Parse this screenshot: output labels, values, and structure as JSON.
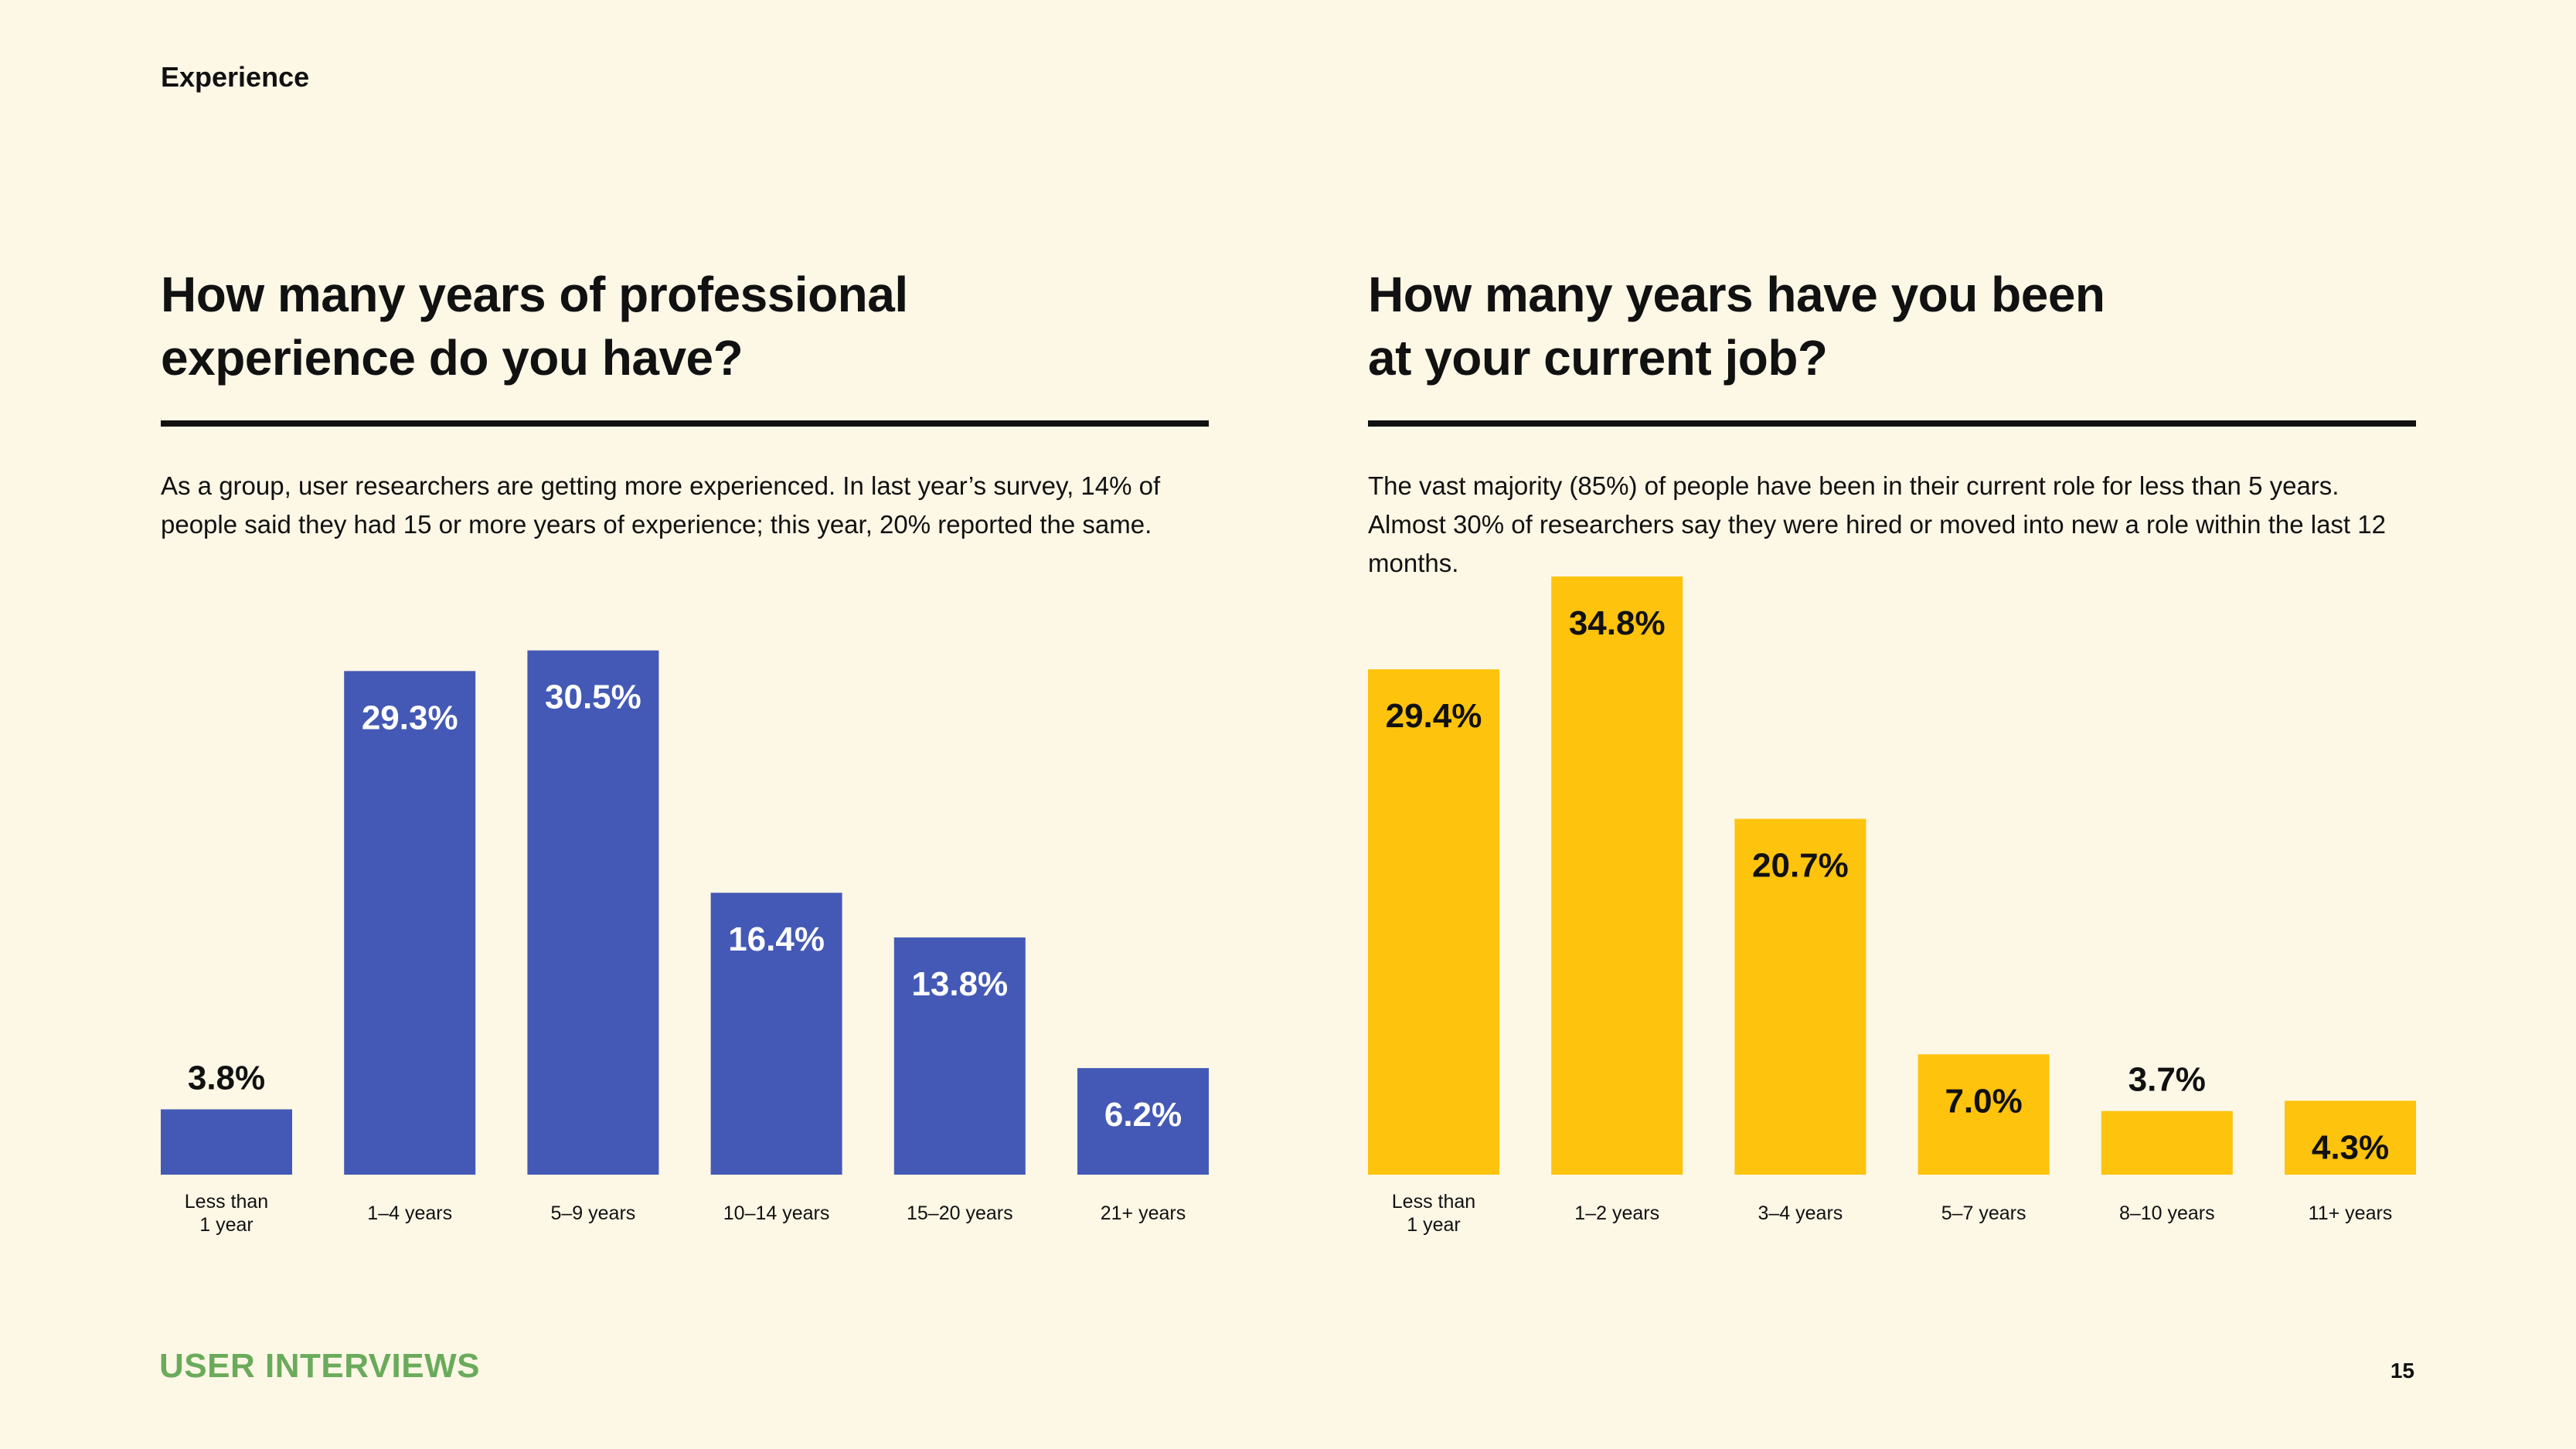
{
  "header": {
    "section": "Experience"
  },
  "footer": {
    "brand": "USER INTERVIEWS",
    "page_number": "15"
  },
  "panels": [
    {
      "title_line1": "How many years of professional",
      "title_line2": "experience do you have?",
      "description": "As a group, user researchers are getting more experienced. In last year’s survey, 14% of people said they had 15 or more years of experience; this year, 20% reported the same."
    },
    {
      "title_line1": "How many years have you been",
      "title_line2": "at your current job?",
      "description": "The vast majority (85%) of people have been in their current role for less than 5 years. Almost 30% of researchers say they were hired or moved into new a role within the last 12 months."
    }
  ],
  "chart_data": [
    {
      "type": "bar",
      "title": "How many years of professional experience do you have?",
      "categories": [
        "Less than 1 year",
        "1–4 years",
        "5–9 years",
        "10–14 years",
        "15–20 years",
        "21+ years"
      ],
      "category_lines": [
        [
          "Less than",
          "1 year"
        ],
        [
          "1–4 years"
        ],
        [
          "5–9 years"
        ],
        [
          "10–14 years"
        ],
        [
          "15–20 years"
        ],
        [
          "21+ years"
        ]
      ],
      "values": [
        3.8,
        29.3,
        30.5,
        16.4,
        13.8,
        6.2
      ],
      "value_labels": [
        "3.8%",
        "29.3%",
        "30.5%",
        "16.4%",
        "13.8%",
        "6.2%"
      ],
      "ylim": [
        0,
        34.8
      ],
      "bar_color": "#4459b5",
      "inside_label_color": "#ffffff",
      "outside_label_color": "#111111",
      "grid": false,
      "legend": "none"
    },
    {
      "type": "bar",
      "title": "How many years have you been at your current job?",
      "categories": [
        "Less than 1 year",
        "1–2 years",
        "3–4 years",
        "5–7 years",
        "8–10 years",
        "11+ years"
      ],
      "category_lines": [
        [
          "Less than",
          "1 year"
        ],
        [
          "1–2 years"
        ],
        [
          "3–4 years"
        ],
        [
          "5–7 years"
        ],
        [
          "8–10 years"
        ],
        [
          "11+ years"
        ]
      ],
      "values": [
        29.4,
        34.8,
        20.7,
        7.0,
        3.7,
        4.3
      ],
      "value_labels": [
        "29.4%",
        "34.8%",
        "20.7%",
        "7.0%",
        "3.7%",
        "4.3%"
      ],
      "ylim": [
        0,
        34.8
      ],
      "bar_color": "#fec30c",
      "inside_label_color": "#111111",
      "outside_label_color": "#111111",
      "grid": false,
      "legend": "none"
    }
  ]
}
